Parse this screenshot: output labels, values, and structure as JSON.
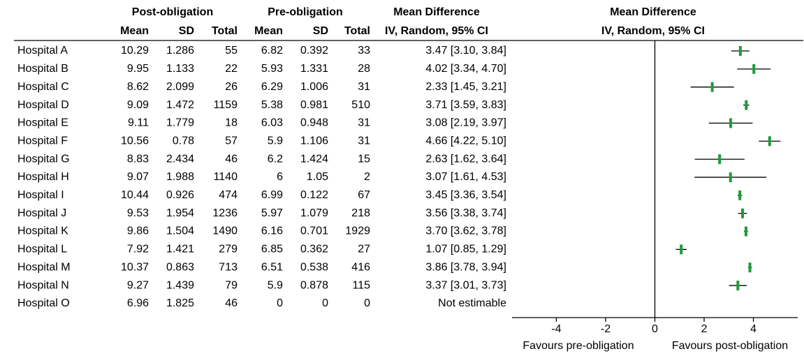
{
  "table": {
    "group_headers": [
      "Post-obligation",
      "Pre-obligation",
      "Mean Difference"
    ],
    "sub_headers": [
      "Mean",
      "SD",
      "Total",
      "Mean",
      "SD",
      "Total",
      "IV, Random, 95%  CI"
    ],
    "rows": [
      [
        "Hospital A",
        10.29,
        1.286,
        55,
        6.82,
        0.392,
        33,
        "3.47 [3.10, 3.84]"
      ],
      [
        "Hospital B",
        9.95,
        1.133,
        22,
        5.93,
        1.331,
        28,
        "4.02 [3.34, 4.70]"
      ],
      [
        "Hospital C",
        8.62,
        2.099,
        26,
        6.29,
        1.006,
        31,
        "2.33 [1.45, 3.21]"
      ],
      [
        "Hospital D",
        9.09,
        1.472,
        1159,
        5.38,
        0.981,
        510,
        "3.71 [3.59, 3.83]"
      ],
      [
        "Hospital E",
        9.11,
        1.779,
        18,
        6.03,
        0.948,
        31,
        "3.08 [2.19, 3.97]"
      ],
      [
        "Hospital F",
        10.56,
        0.78,
        57,
        5.9,
        1.106,
        31,
        "4.66 [4.22, 5.10]"
      ],
      [
        "Hospital G",
        8.83,
        2.434,
        46,
        6.2,
        1.424,
        15,
        "2.63 [1.62, 3.64]"
      ],
      [
        "Hospital H",
        9.07,
        1.988,
        1140,
        6,
        1.05,
        2,
        "3.07 [1.61, 4.53]"
      ],
      [
        "Hospital I",
        10.44,
        0.926,
        474,
        6.99,
        0.122,
        67,
        "3.45 [3.36, 3.54]"
      ],
      [
        "Hospital J",
        9.53,
        1.954,
        1236,
        5.97,
        1.079,
        218,
        "3.56 [3.38, 3.74]"
      ],
      [
        "Hospital K",
        9.86,
        1.504,
        1490,
        6.16,
        0.701,
        1929,
        "3.70 [3.62, 3.78]"
      ],
      [
        "Hospital L",
        7.92,
        1.421,
        279,
        6.85,
        0.362,
        27,
        "1.07 [0.85, 1.29]"
      ],
      [
        "Hospital M",
        10.37,
        0.863,
        713,
        6.51,
        0.538,
        416,
        "3.86 [3.78, 3.94]"
      ],
      [
        "Hospital N",
        9.27,
        1.439,
        79,
        5.9,
        0.878,
        115,
        "3.37 [3.01, 3.73]"
      ],
      [
        "Hospital O",
        6.96,
        1.825,
        46,
        0,
        0,
        0,
        "Not estimable"
      ]
    ]
  },
  "chart_data": {
    "type": "forest",
    "title": "Mean Difference",
    "subtitle": "IV, Random, 95%  CI",
    "values": [
      3.47,
      4.02,
      2.33,
      3.71,
      3.08,
      4.66,
      2.63,
      3.07,
      3.45,
      3.56,
      3.7,
      1.07,
      3.86,
      3.37,
      null
    ],
    "ci_low": [
      3.1,
      3.34,
      1.45,
      3.59,
      2.19,
      4.22,
      1.62,
      1.61,
      3.36,
      3.38,
      3.62,
      0.85,
      3.78,
      3.01,
      null
    ],
    "ci_high": [
      3.84,
      4.7,
      3.21,
      3.83,
      3.97,
      5.1,
      3.64,
      4.53,
      3.54,
      3.74,
      3.78,
      1.29,
      3.94,
      3.73,
      null
    ],
    "color": "#1f9a3a",
    "xlim": [
      -5.8,
      5.8
    ],
    "xticks": [
      -4,
      -2,
      0,
      2,
      4
    ],
    "xlabel_left": "Favours pre-obligation",
    "xlabel_right": "Favours post-obligation"
  }
}
